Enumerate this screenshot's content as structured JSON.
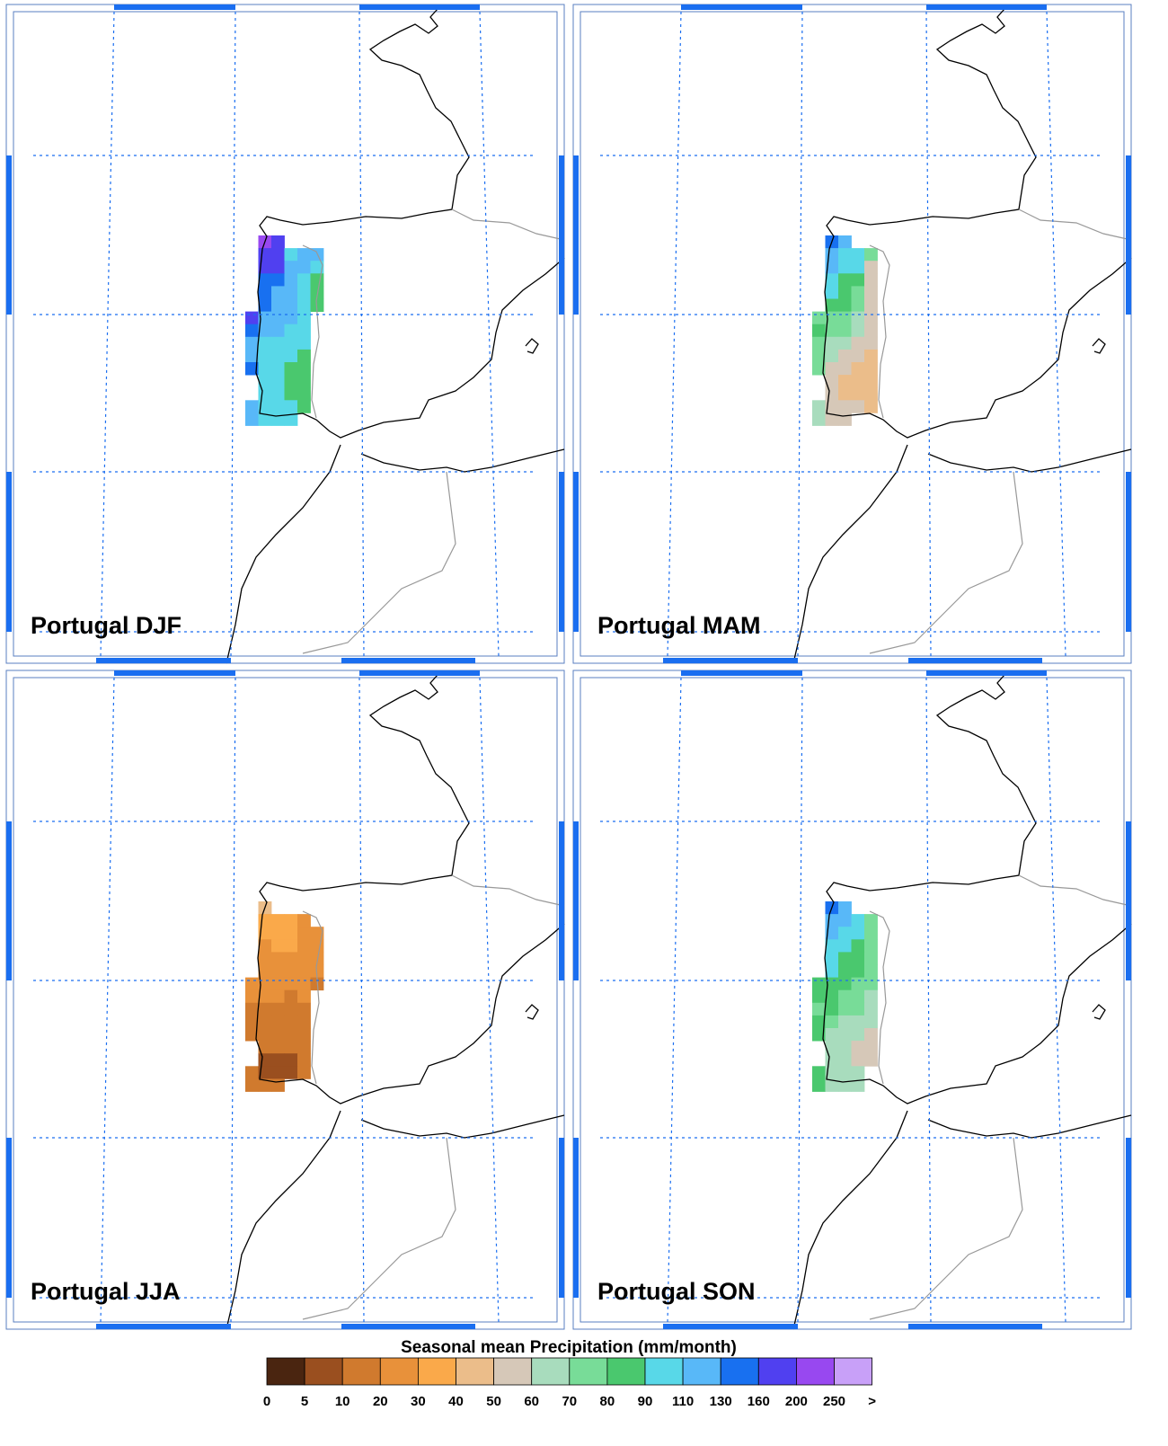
{
  "panels": [
    {
      "title": "Portugal DJF",
      "grid": [
        [
          null,
          200,
          170,
          null,
          null,
          null
        ],
        [
          null,
          170,
          170,
          100,
          120,
          120
        ],
        [
          null,
          170,
          170,
          120,
          120,
          100
        ],
        [
          null,
          140,
          140,
          120,
          100,
          85
        ],
        [
          null,
          140,
          120,
          120,
          100,
          85
        ],
        [
          null,
          140,
          120,
          120,
          100,
          85
        ],
        [
          170,
          120,
          120,
          120,
          100,
          null
        ],
        [
          140,
          120,
          120,
          100,
          100,
          null
        ],
        [
          120,
          100,
          100,
          100,
          100,
          null
        ],
        [
          120,
          100,
          100,
          100,
          85,
          null
        ],
        [
          140,
          100,
          100,
          85,
          85,
          null
        ],
        [
          null,
          100,
          100,
          85,
          85,
          null
        ],
        [
          null,
          100,
          100,
          85,
          85,
          null
        ],
        [
          120,
          100,
          100,
          100,
          85,
          null
        ],
        [
          120,
          100,
          100,
          100,
          null,
          null
        ]
      ]
    },
    {
      "title": "Portugal MAM",
      "grid": [
        [
          null,
          140,
          120,
          null,
          null,
          null
        ],
        [
          null,
          120,
          100,
          100,
          75,
          null
        ],
        [
          null,
          120,
          100,
          100,
          55,
          null
        ],
        [
          null,
          100,
          85,
          85,
          55,
          null
        ],
        [
          null,
          100,
          85,
          75,
          55,
          null
        ],
        [
          null,
          85,
          85,
          75,
          55,
          null
        ],
        [
          75,
          75,
          75,
          65,
          55,
          null
        ],
        [
          85,
          75,
          75,
          65,
          55,
          null
        ],
        [
          75,
          65,
          65,
          55,
          55,
          null
        ],
        [
          75,
          65,
          55,
          55,
          45,
          null
        ],
        [
          75,
          55,
          55,
          45,
          45,
          null
        ],
        [
          null,
          55,
          45,
          45,
          45,
          null
        ],
        [
          null,
          55,
          45,
          45,
          45,
          null
        ],
        [
          65,
          55,
          55,
          55,
          45,
          null
        ],
        [
          65,
          55,
          55,
          null,
          null,
          null
        ]
      ]
    },
    {
      "title": "Portugal JJA",
      "grid": [
        [
          null,
          45,
          null,
          null,
          null,
          null
        ],
        [
          null,
          35,
          35,
          35,
          25,
          null
        ],
        [
          null,
          35,
          35,
          35,
          25,
          25
        ],
        [
          null,
          25,
          35,
          35,
          25,
          25
        ],
        [
          null,
          25,
          25,
          25,
          25,
          25
        ],
        [
          null,
          25,
          25,
          25,
          25,
          25
        ],
        [
          25,
          25,
          25,
          25,
          25,
          15
        ],
        [
          25,
          25,
          25,
          15,
          25,
          null
        ],
        [
          15,
          15,
          15,
          15,
          15,
          null
        ],
        [
          15,
          15,
          15,
          15,
          15,
          null
        ],
        [
          15,
          15,
          15,
          15,
          15,
          null
        ],
        [
          null,
          15,
          15,
          15,
          15,
          null
        ],
        [
          null,
          7,
          7,
          7,
          15,
          null
        ],
        [
          15,
          7,
          7,
          7,
          15,
          null
        ],
        [
          15,
          15,
          15,
          null,
          null,
          null
        ]
      ]
    },
    {
      "title": "Portugal SON",
      "grid": [
        [
          null,
          140,
          120,
          null,
          null,
          null
        ],
        [
          null,
          120,
          120,
          100,
          75,
          null
        ],
        [
          null,
          120,
          100,
          100,
          75,
          null
        ],
        [
          null,
          100,
          100,
          85,
          75,
          null
        ],
        [
          null,
          100,
          85,
          85,
          75,
          null
        ],
        [
          null,
          100,
          85,
          85,
          75,
          null
        ],
        [
          85,
          85,
          85,
          75,
          75,
          null
        ],
        [
          85,
          85,
          75,
          75,
          65,
          null
        ],
        [
          75,
          85,
          75,
          75,
          65,
          null
        ],
        [
          85,
          75,
          65,
          65,
          65,
          null
        ],
        [
          85,
          65,
          65,
          65,
          55,
          null
        ],
        [
          null,
          65,
          65,
          55,
          55,
          null
        ],
        [
          null,
          65,
          65,
          55,
          55,
          null
        ],
        [
          85,
          65,
          65,
          65,
          null,
          null
        ],
        [
          85,
          65,
          65,
          65,
          null,
          null
        ]
      ]
    }
  ],
  "colorbar": {
    "title": "Seasonal mean Precipitation (mm/month)",
    "labels": [
      0,
      5,
      10,
      20,
      30,
      40,
      50,
      60,
      70,
      80,
      90,
      110,
      130,
      160,
      200,
      250,
      ">"
    ],
    "colors": [
      "#4a2510",
      "#9a4f1f",
      "#d07a2e",
      "#e8913a",
      "#faa94a",
      "#ebbd8a",
      "#d6c8b8",
      "#a8dcbd",
      "#78dc98",
      "#4ac86e",
      "#58d8e8",
      "#58b8f8",
      "#1870f0",
      "#5040f0",
      "#9848f0",
      "#c8a0f8"
    ]
  }
}
